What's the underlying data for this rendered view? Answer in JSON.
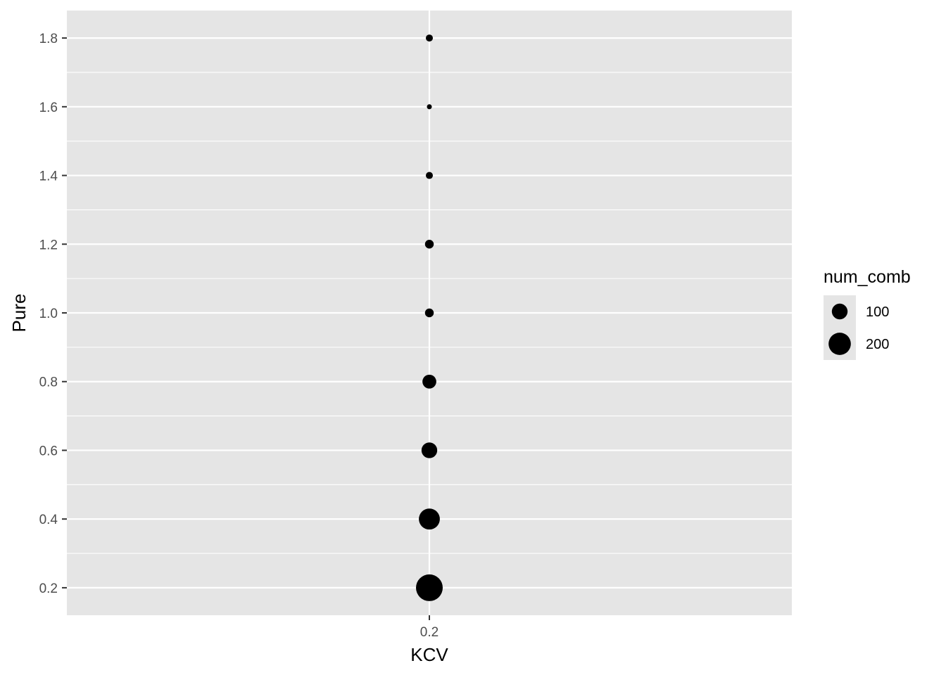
{
  "chart_data": {
    "type": "scatter",
    "xlabel": "KCV",
    "ylabel": "Pure",
    "x_categories": [
      "0.2"
    ],
    "y_ticks": [
      "0.2",
      "0.4",
      "0.6",
      "0.8",
      "1.0",
      "1.2",
      "1.4",
      "1.6",
      "1.8"
    ],
    "ylim": [
      0.12,
      1.88
    ],
    "grid": true,
    "points": [
      {
        "x": "0.2",
        "y": 0.2,
        "num_comb": 260
      },
      {
        "x": "0.2",
        "y": 0.4,
        "num_comb": 160
      },
      {
        "x": "0.2",
        "y": 0.6,
        "num_comb": 90
      },
      {
        "x": "0.2",
        "y": 0.8,
        "num_comb": 70
      },
      {
        "x": "0.2",
        "y": 1.0,
        "num_comb": 28
      },
      {
        "x": "0.2",
        "y": 1.2,
        "num_comb": 28
      },
      {
        "x": "0.2",
        "y": 1.4,
        "num_comb": 18
      },
      {
        "x": "0.2",
        "y": 1.6,
        "num_comb": 9
      },
      {
        "x": "0.2",
        "y": 1.8,
        "num_comb": 18
      }
    ],
    "legend": {
      "title": "num_comb",
      "position": "right",
      "entries": [
        {
          "label": "100",
          "value": 100
        },
        {
          "label": "200",
          "value": 200
        }
      ]
    },
    "colors": {
      "panel": "#e5e5e5",
      "grid": "#ffffff",
      "point": "#000000"
    }
  }
}
